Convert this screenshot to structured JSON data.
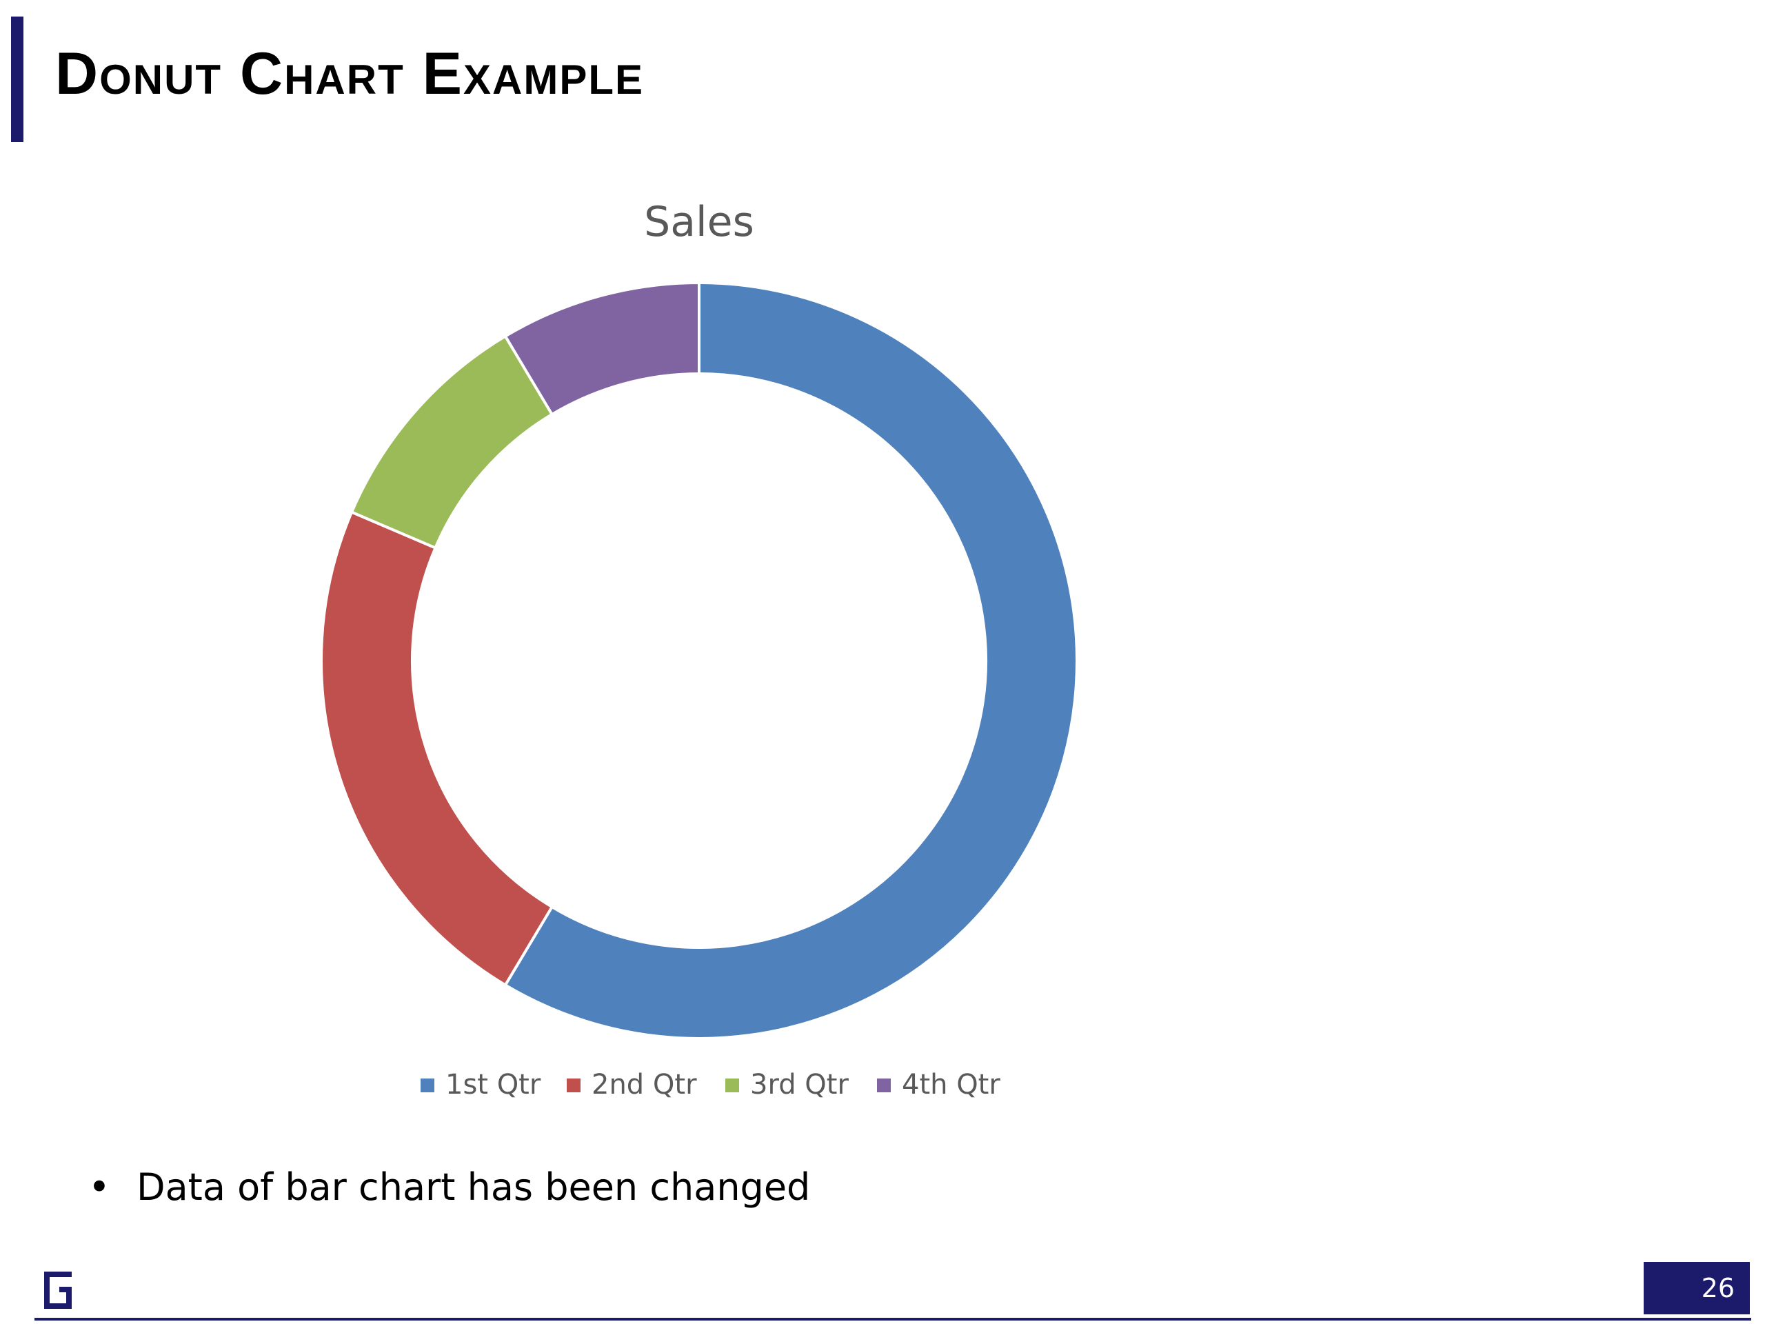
{
  "slide": {
    "title": "Donut Chart Example",
    "bullets": [
      "Data of bar chart has been changed"
    ],
    "page_number": "26"
  },
  "chart_data": {
    "type": "pie",
    "variant": "donut",
    "title": "Sales",
    "categories": [
      "1st Qtr",
      "2nd Qtr",
      "3rd Qtr",
      "4th Qtr"
    ],
    "values": [
      8.2,
      3.2,
      1.4,
      1.2
    ],
    "colors": [
      "#4f81bd",
      "#c0504d",
      "#9bbb59",
      "#8064a2"
    ],
    "legend_position": "bottom"
  }
}
